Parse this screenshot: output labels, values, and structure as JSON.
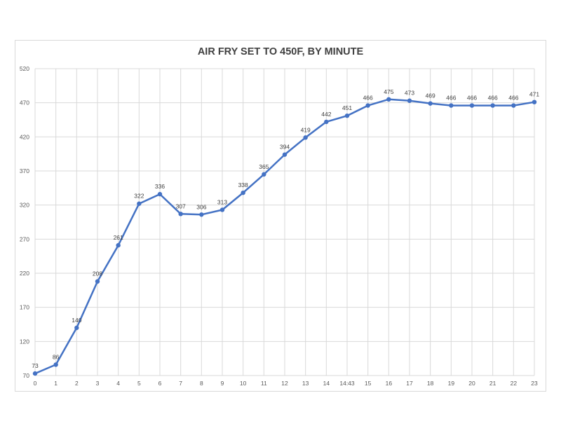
{
  "chart_data": {
    "type": "line",
    "title": "AIR FRY SET TO 450F, BY MINUTE",
    "xlabel": "",
    "ylabel": "",
    "categories": [
      "0",
      "1",
      "2",
      "3",
      "4",
      "5",
      "6",
      "7",
      "8",
      "9",
      "10",
      "11",
      "12",
      "13",
      "14",
      "14:43",
      "15",
      "16",
      "17",
      "18",
      "19",
      "20",
      "21",
      "22",
      "23"
    ],
    "series": [
      {
        "values": [
          73,
          86,
          140,
          208,
          261,
          322,
          336,
          307,
          306,
          313,
          338,
          365,
          394,
          419,
          442,
          451,
          466,
          475,
          473,
          469,
          466,
          466,
          466,
          466,
          471
        ]
      }
    ],
    "ylim": [
      70,
      520
    ],
    "yticks": [
      70,
      120,
      170,
      220,
      270,
      320,
      370,
      420,
      470,
      520
    ],
    "grid": true,
    "legend": "none",
    "line_color": "#4472c4",
    "grid_color": "#d9d9d9",
    "show_data_labels": true
  }
}
